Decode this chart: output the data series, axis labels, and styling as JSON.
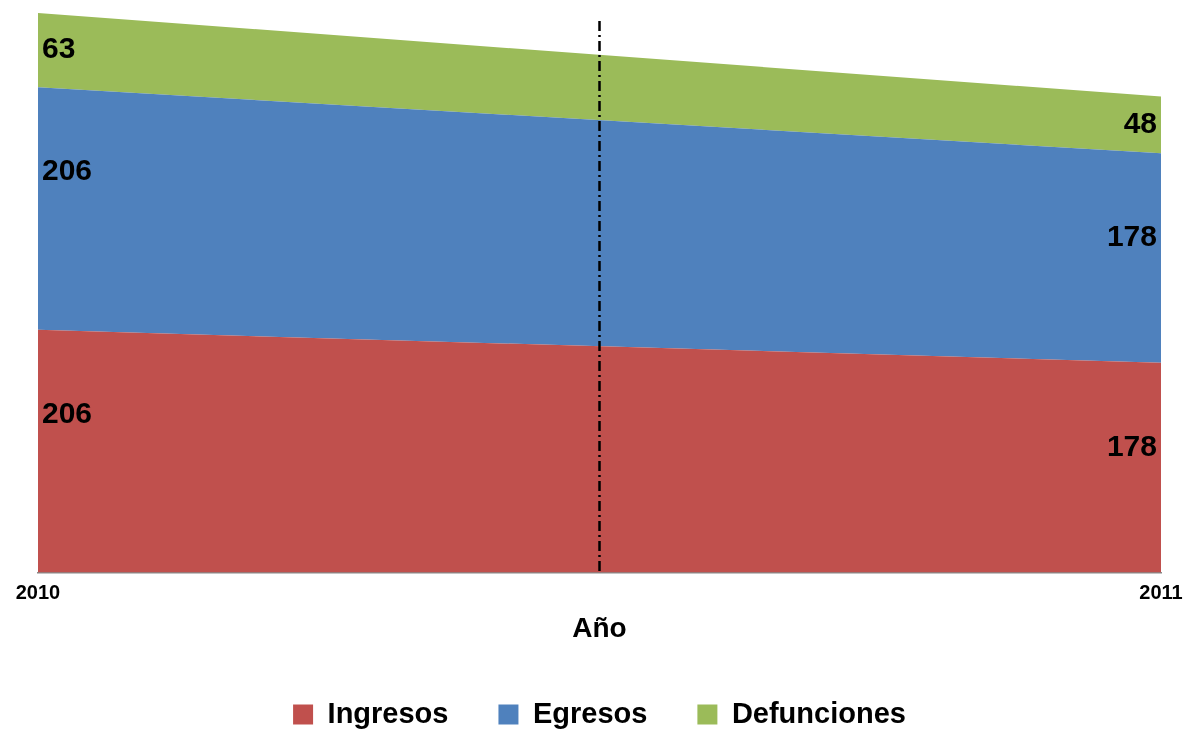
{
  "chart_data": {
    "type": "area",
    "stacked": true,
    "x": [
      2010,
      2011
    ],
    "xlim": [
      2010,
      2011
    ],
    "xticks": [
      2010,
      2011
    ],
    "tick_labels": "x",
    "xlabel": "Año",
    "legend": "bottom",
    "grid": false,
    "data_labels": true,
    "series": [
      {
        "name": "Ingresos",
        "color": "#c0504d",
        "values": [
          206,
          178
        ]
      },
      {
        "name": "Egresos",
        "color": "#4f81bd",
        "values": [
          206,
          178
        ]
      },
      {
        "name": "Defunciones",
        "color": "#9bbb59",
        "values": [
          63,
          48
        ]
      }
    ],
    "ref_lines": [
      {
        "axis": "x",
        "value": 2010.5,
        "color": "#000000",
        "line_style": "dashed"
      }
    ]
  }
}
